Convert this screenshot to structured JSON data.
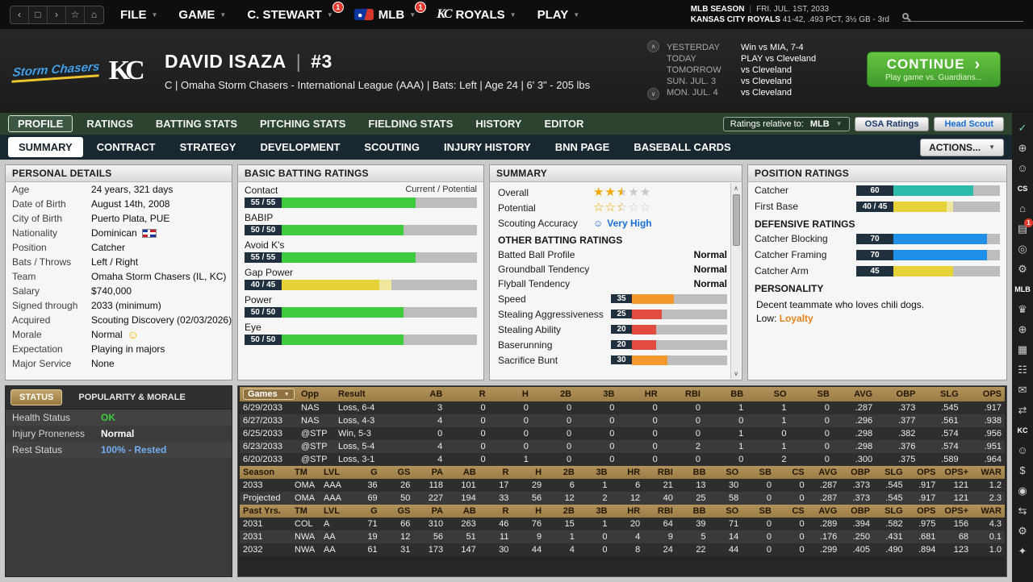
{
  "topbar": {
    "menus": [
      {
        "label": "FILE"
      },
      {
        "label": "GAME"
      },
      {
        "label": "C. STEWART",
        "badge": "1"
      },
      {
        "label": "MLB",
        "badge": "1",
        "logo": "mlb"
      },
      {
        "label": "ROYALS",
        "logo": "kc"
      },
      {
        "label": "PLAY"
      }
    ],
    "season_label": "MLB SEASON",
    "date": "FRI. JUL. 1ST, 2033",
    "team_name": "KANSAS CITY ROYALS",
    "team_record": "41-42, .493 PCT, 3½ GB - 3rd"
  },
  "header": {
    "team_logo_text": "Storm Chasers",
    "kc_logo_text": "KC",
    "player_name": "DAVID ISAZA",
    "jersey_number": "#3",
    "subtitle": "C | Omaha Storm Chasers - International League (AAA)  |  Bats: Left  |  Age 24  |  6' 3\" - 205 lbs",
    "schedule": [
      {
        "label": "YESTERDAY",
        "value": "Win vs MIA, 7-4"
      },
      {
        "label": "TODAY",
        "value": "PLAY vs Cleveland"
      },
      {
        "label": "TOMORROW",
        "value": "vs Cleveland"
      },
      {
        "label": "SUN. JUL. 3",
        "value": "vs Cleveland"
      },
      {
        "label": "MON. JUL. 4",
        "value": "vs Cleveland"
      }
    ],
    "continue_button": {
      "label": "CONTINUE",
      "subtext": "Play game vs. Guardians..."
    }
  },
  "primary_tabs": [
    "PROFILE",
    "RATINGS",
    "BATTING STATS",
    "PITCHING STATS",
    "FIELDING STATS",
    "HISTORY",
    "EDITOR"
  ],
  "primary_tab_active": 0,
  "ratings_relative_label": "Ratings relative to:",
  "ratings_relative_value": "MLB",
  "osa_ratings_button": "OSA Ratings",
  "head_scout_button": "Head Scout",
  "secondary_tabs": [
    "SUMMARY",
    "CONTRACT",
    "STRATEGY",
    "DEVELOPMENT",
    "SCOUTING",
    "INJURY HISTORY",
    "BNN PAGE",
    "BASEBALL CARDS"
  ],
  "secondary_tab_active": 0,
  "actions_button": "ACTIONS...",
  "personal_details": {
    "title": "PERSONAL DETAILS",
    "rows": [
      {
        "label": "Age",
        "value": "24 years, 321 days"
      },
      {
        "label": "Date of Birth",
        "value": "August 14th, 2008"
      },
      {
        "label": "City of Birth",
        "value": "Puerto Plata, PUE"
      },
      {
        "label": "Nationality",
        "value": "Dominican",
        "extra": "flag-dr"
      },
      {
        "label": "Position",
        "value": "Catcher"
      },
      {
        "label": "Bats / Throws",
        "value": "Left / Right"
      },
      {
        "label": "Team",
        "value": "Omaha Storm Chasers (IL, KC)"
      },
      {
        "label": "Salary",
        "value": "$740,000"
      },
      {
        "label": "Signed through",
        "value": "2033 (minimum)"
      },
      {
        "label": "Acquired",
        "value": "Scouting Discovery (02/03/2026)"
      },
      {
        "label": "Morale",
        "value": "Normal",
        "extra": "smiley"
      },
      {
        "label": "Expectation",
        "value": "Playing in majors"
      },
      {
        "label": "Major Service",
        "value": "None"
      }
    ]
  },
  "status_panel": {
    "tabs": [
      "STATUS",
      "POPULARITY & MORALE"
    ],
    "active_tab": 0,
    "rows": [
      {
        "label": "Health Status",
        "value": "OK",
        "color": "#3ecb3e"
      },
      {
        "label": "Injury Proneness",
        "value": "Normal",
        "color": "#ffffff"
      },
      {
        "label": "Rest Status",
        "value": "100% - Rested",
        "color": "#74aef2"
      }
    ]
  },
  "batting_ratings": {
    "title": "BASIC BATTING RATINGS",
    "note": "Current / Potential",
    "scale_max": 80,
    "items": [
      {
        "label": "Contact",
        "display": "55 / 55",
        "current": 55,
        "potential": 55,
        "color": "green"
      },
      {
        "label": "BABIP",
        "display": "50 / 50",
        "current": 50,
        "potential": 50,
        "color": "green"
      },
      {
        "label": "Avoid K's",
        "display": "55 / 55",
        "current": 55,
        "potential": 55,
        "color": "green"
      },
      {
        "label": "Gap Power",
        "display": "40 / 45",
        "current": 40,
        "potential": 45,
        "color": "yellow"
      },
      {
        "label": "Power",
        "display": "50 / 50",
        "current": 50,
        "potential": 50,
        "color": "green"
      },
      {
        "label": "Eye",
        "display": "50 / 50",
        "current": 50,
        "potential": 50,
        "color": "green"
      }
    ]
  },
  "summary_panel": {
    "title": "SUMMARY",
    "overall_label": "Overall",
    "overall_stars": 2.5,
    "potential_label": "Potential",
    "potential_stars": 2.5,
    "scouting_accuracy_label": "Scouting Accuracy",
    "scouting_accuracy_value": "Very High",
    "other_ratings_header": "OTHER BATTING RATINGS",
    "text_rows": [
      {
        "label": "Batted Ball Profile",
        "value": "Normal"
      },
      {
        "label": "Groundball Tendency",
        "value": "Normal"
      },
      {
        "label": "Flyball Tendency",
        "value": "Normal"
      }
    ],
    "bar_rows": [
      {
        "label": "Speed",
        "value": 35,
        "color": "orange"
      },
      {
        "label": "Stealing Aggressiveness",
        "value": 25,
        "color": "red"
      },
      {
        "label": "Stealing Ability",
        "value": 20,
        "color": "red"
      },
      {
        "label": "Baserunning",
        "value": 20,
        "color": "red"
      },
      {
        "label": "Sacrifice Bunt",
        "value": 30,
        "color": "orange"
      }
    ]
  },
  "position_ratings": {
    "title": "POSITION RATINGS",
    "items": [
      {
        "label": "Catcher",
        "display": "60",
        "current": 60,
        "potential": 60,
        "color": "teal"
      },
      {
        "label": "First Base",
        "display": "40 / 45",
        "current": 40,
        "potential": 45,
        "color": "yellow"
      }
    ],
    "defensive_header": "DEFENSIVE RATINGS",
    "defensive_items": [
      {
        "label": "Catcher Blocking",
        "display": "70",
        "current": 70,
        "potential": 70,
        "color": "blue"
      },
      {
        "label": "Catcher Framing",
        "display": "70",
        "current": 70,
        "potential": 70,
        "color": "blue"
      },
      {
        "label": "Catcher Arm",
        "display": "45",
        "current": 45,
        "potential": 45,
        "color": "yellow"
      }
    ],
    "personality_header": "PERSONALITY",
    "personality_text": "Decent teammate who loves chili dogs.",
    "personality_low_label": "Low:",
    "personality_low_value": "Loyalty"
  },
  "game_log": {
    "columns": [
      "Games",
      "Opp",
      "Result",
      "AB",
      "R",
      "H",
      "2B",
      "3B",
      "HR",
      "RBI",
      "BB",
      "SO",
      "SB",
      "AVG",
      "OBP",
      "SLG",
      "OPS"
    ],
    "rows": [
      [
        "6/29/2033",
        "NAS",
        "Loss, 6-4",
        "3",
        "0",
        "0",
        "0",
        "0",
        "0",
        "0",
        "1",
        "1",
        "0",
        ".287",
        ".373",
        ".545",
        ".917"
      ],
      [
        "6/27/2033",
        "NAS",
        "Loss, 4-3",
        "4",
        "0",
        "0",
        "0",
        "0",
        "0",
        "0",
        "0",
        "1",
        "0",
        ".296",
        ".377",
        ".561",
        ".938"
      ],
      [
        "6/25/2033",
        "@STP",
        "Win, 5-3",
        "0",
        "0",
        "0",
        "0",
        "0",
        "0",
        "0",
        "1",
        "0",
        "0",
        ".298",
        ".382",
        ".574",
        ".956"
      ],
      [
        "6/23/2033",
        "@STP",
        "Loss, 5-4",
        "4",
        "0",
        "0",
        "0",
        "0",
        "0",
        "2",
        "1",
        "1",
        "0",
        ".298",
        ".376",
        ".574",
        ".951"
      ],
      [
        "6/20/2033",
        "@STP",
        "Loss, 3-1",
        "4",
        "0",
        "1",
        "0",
        "0",
        "0",
        "0",
        "0",
        "2",
        "0",
        ".300",
        ".375",
        ".589",
        ".964"
      ]
    ]
  },
  "season_stats": {
    "columns": [
      "Season",
      "TM",
      "LVL",
      "G",
      "GS",
      "PA",
      "AB",
      "R",
      "H",
      "2B",
      "3B",
      "HR",
      "RBI",
      "BB",
      "SO",
      "SB",
      "CS",
      "AVG",
      "OBP",
      "SLG",
      "OPS",
      "OPS+",
      "WAR"
    ],
    "rows": [
      [
        "2033",
        "OMA",
        "AAA",
        "36",
        "26",
        "118",
        "101",
        "17",
        "29",
        "6",
        "1",
        "6",
        "21",
        "13",
        "30",
        "0",
        "0",
        ".287",
        ".373",
        ".545",
        ".917",
        "121",
        "1.2"
      ],
      [
        "Projected",
        "OMA",
        "AAA",
        "69",
        "50",
        "227",
        "194",
        "33",
        "56",
        "12",
        "2",
        "12",
        "40",
        "25",
        "58",
        "0",
        "0",
        ".287",
        ".373",
        ".545",
        ".917",
        "121",
        "2.3"
      ]
    ]
  },
  "past_stats": {
    "columns": [
      "Past Yrs.",
      "TM",
      "LVL",
      "G",
      "GS",
      "PA",
      "AB",
      "R",
      "H",
      "2B",
      "3B",
      "HR",
      "RBI",
      "BB",
      "SO",
      "SB",
      "CS",
      "AVG",
      "OBP",
      "SLG",
      "OPS",
      "OPS+",
      "WAR"
    ],
    "rows": [
      [
        "2031",
        "COL",
        "A",
        "71",
        "66",
        "310",
        "263",
        "46",
        "76",
        "15",
        "1",
        "20",
        "64",
        "39",
        "71",
        "0",
        "0",
        ".289",
        ".394",
        ".582",
        ".975",
        "156",
        "4.3"
      ],
      [
        "2031",
        "NWA",
        "AA",
        "19",
        "12",
        "56",
        "51",
        "11",
        "9",
        "1",
        "0",
        "4",
        "9",
        "5",
        "14",
        "0",
        "0",
        ".176",
        ".250",
        ".431",
        ".681",
        "68",
        "0.1"
      ],
      [
        "2032",
        "NWA",
        "AA",
        "61",
        "31",
        "173",
        "147",
        "30",
        "44",
        "4",
        "0",
        "8",
        "24",
        "22",
        "44",
        "0",
        "0",
        ".299",
        ".405",
        ".490",
        ".894",
        "123",
        "1.0"
      ]
    ]
  },
  "right_rail_icons": [
    {
      "name": "check-icon",
      "glyph": "✓",
      "color": "#6fd3c7"
    },
    {
      "name": "globe-icon",
      "glyph": "⊕"
    },
    {
      "name": "person-icon",
      "glyph": "☺"
    },
    {
      "name": "cs-label-icon",
      "glyph": "CS",
      "text": true
    },
    {
      "name": "home-icon",
      "glyph": "⌂"
    },
    {
      "name": "calendar-icon",
      "glyph": "▤",
      "badge": "1"
    },
    {
      "name": "zoom-icon",
      "glyph": "◎"
    },
    {
      "name": "gear-icon",
      "glyph": "⚙"
    },
    {
      "name": "mlb-label-icon",
      "glyph": "MLB",
      "text": true
    },
    {
      "name": "trophy-icon",
      "glyph": "♛"
    },
    {
      "name": "world-icon",
      "glyph": "⊕"
    },
    {
      "name": "chart-icon",
      "glyph": "▦"
    },
    {
      "name": "roster-icon",
      "glyph": "☷"
    },
    {
      "name": "mail-icon",
      "glyph": "✉"
    },
    {
      "name": "transactions-icon",
      "glyph": "⇄"
    },
    {
      "name": "kc-label-icon",
      "glyph": "KC",
      "text": true
    },
    {
      "name": "player-icon",
      "glyph": "☺"
    },
    {
      "name": "finance-icon",
      "glyph": "$"
    },
    {
      "name": "target-icon",
      "glyph": "◉"
    },
    {
      "name": "swap-icon",
      "glyph": "⇆"
    },
    {
      "name": "settings-icon",
      "glyph": "⚙"
    },
    {
      "name": "star-icon",
      "glyph": "✦"
    }
  ]
}
